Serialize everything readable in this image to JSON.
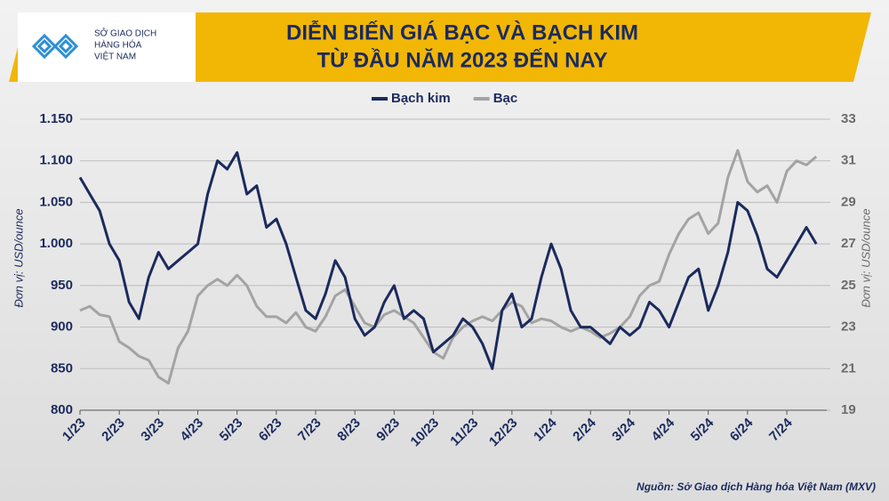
{
  "logo": {
    "lines": [
      "SỞ GIAO DỊCH",
      "HÀNG HÓA",
      "VIỆT NAM"
    ]
  },
  "source": "Nguồn: Sở Giao dịch Hàng hóa Việt Nam (MXV)",
  "chart_data": {
    "type": "line",
    "title": "DIỄN BIẾN GIÁ BẠC VÀ BẠCH KIM",
    "subtitle": "TỪ ĐẦU NĂM 2023 ĐẾN NAY",
    "ylabel": "Đơn vị: USD/ounce",
    "y2label": "Đơn vị: USD/ounce",
    "grid": true,
    "categories": [
      "1/23",
      null,
      null,
      null,
      "2/23",
      null,
      null,
      null,
      "3/23",
      null,
      null,
      null,
      "4/23",
      null,
      null,
      null,
      "5/23",
      null,
      null,
      null,
      "6/23",
      null,
      null,
      null,
      "7/23",
      null,
      null,
      null,
      "8/23",
      null,
      null,
      null,
      "9/23",
      null,
      null,
      null,
      "10/23",
      null,
      null,
      null,
      "11/23",
      null,
      null,
      null,
      "12/23",
      null,
      null,
      null,
      "1/24",
      null,
      null,
      null,
      "2/24",
      null,
      null,
      null,
      "3/24",
      null,
      null,
      null,
      "4/24",
      null,
      null,
      null,
      "5/24",
      null,
      null,
      null,
      "6/24",
      null,
      null,
      null,
      "7/24",
      null,
      null,
      null
    ],
    "ylim": [
      800,
      1150
    ],
    "yticks": [
      800,
      850,
      900,
      950,
      {
        "value": 1000,
        "label": "1.000"
      },
      {
        "value": 1050,
        "label": "1.050"
      },
      {
        "value": 1100,
        "label": "1.100"
      },
      {
        "value": 1150,
        "label": "1.150"
      }
    ],
    "y2lim": [
      19,
      33
    ],
    "y2ticks": [
      19,
      21,
      23,
      25,
      27,
      29,
      31,
      33
    ],
    "series": [
      {
        "name": "Bạch kim",
        "color": "#1b2a5e",
        "values": [
          1080,
          1060,
          1040,
          1000,
          980,
          930,
          910,
          960,
          990,
          970,
          980,
          990,
          1000,
          1060,
          1100,
          1090,
          1110,
          1060,
          1070,
          1020,
          1030,
          1000,
          960,
          920,
          910,
          940,
          980,
          960,
          910,
          890,
          900,
          930,
          950,
          910,
          920,
          910,
          870,
          880,
          890,
          910,
          900,
          880,
          850,
          920,
          940,
          900,
          910,
          960,
          1000,
          970,
          920,
          900,
          900,
          890,
          880,
          900,
          890,
          900,
          930,
          920,
          900,
          930,
          960,
          970,
          920,
          950,
          990,
          1050,
          1040,
          1010,
          970,
          960,
          980,
          1000,
          1020,
          1000
        ]
      },
      {
        "name": "Bạc",
        "color": "#a3a3a3",
        "axis": "y2",
        "values": [
          23.8,
          24.0,
          23.6,
          23.5,
          22.3,
          22.0,
          21.6,
          21.4,
          20.6,
          20.3,
          22.0,
          22.8,
          24.5,
          25.0,
          25.3,
          25.0,
          25.5,
          25.0,
          24.0,
          23.5,
          23.5,
          23.2,
          23.7,
          23.0,
          22.8,
          23.5,
          24.5,
          24.8,
          24.0,
          23.2,
          23.0,
          23.6,
          23.8,
          23.5,
          23.2,
          22.5,
          21.8,
          21.5,
          22.5,
          23.0,
          23.3,
          23.5,
          23.3,
          23.8,
          24.2,
          24.0,
          23.2,
          23.4,
          23.3,
          23.0,
          22.8,
          23.0,
          22.8,
          22.5,
          22.7,
          23.0,
          23.5,
          24.5,
          25.0,
          25.2,
          26.5,
          27.5,
          28.2,
          28.5,
          27.5,
          28.0,
          30.2,
          31.5,
          30.0,
          29.5,
          29.8,
          29.0,
          30.5,
          31.0,
          30.8,
          31.2
        ]
      }
    ]
  }
}
